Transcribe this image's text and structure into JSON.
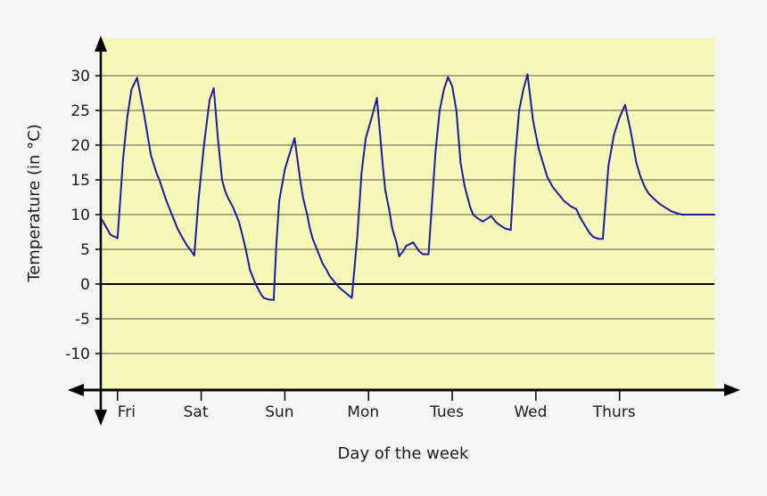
{
  "chart_data": {
    "type": "line",
    "xlabel": "Day of the week",
    "ylabel": "Temperature (in °C)",
    "categories": [
      "Fri",
      "Sat",
      "Sun",
      "Mon",
      "Tues",
      "Wed",
      "Thurs"
    ],
    "y_ticks": [
      30,
      25,
      20,
      15,
      10,
      5,
      0,
      -5,
      -10
    ],
    "grid": true,
    "colors": {
      "plot_background": "#f7f7b8",
      "line": "#1c1c9e",
      "grid": "#5a5a4a",
      "axis": "#000000"
    },
    "series": [
      {
        "x": [
          0.0,
          0.15,
          0.25,
          0.35,
          0.45,
          0.6,
          0.8,
          0.95,
          1.1,
          1.3,
          1.55,
          1.8,
          2.0,
          2.1,
          2.35,
          2.5,
          2.6,
          2.75,
          2.95,
          3.1,
          3.2,
          3.35,
          3.5,
          3.7,
          3.9,
          4.05,
          4.2,
          4.35,
          4.45,
          4.55,
          4.75,
          4.95,
          5.05,
          5.2,
          5.35,
          5.55,
          5.75,
          5.85,
          6.0,
          6.2,
          6.3,
          6.4,
          6.6,
          6.75,
          6.95,
          7.15,
          7.25,
          7.4,
          7.5,
          7.6,
          7.8,
          7.95,
          8.1,
          8.2,
          8.4,
          8.55,
          8.7,
          8.85,
          9.0,
          9.2,
          9.35,
          9.5,
          9.75,
          9.9,
          10.1,
          10.2,
          10.35,
          10.45,
          10.6,
          10.7,
          10.85,
          10.95,
          11.1,
          11.2,
          11.4,
          11.55,
          11.75,
          12.0,
          12.15,
          12.3,
          12.45,
          12.6,
          12.75,
          12.9,
          13.05,
          13.25,
          13.35,
          13.5,
          13.7,
          13.85,
          14.0,
          14.15,
          14.3,
          14.5,
          14.7,
          14.85,
          15.0,
          15.15,
          15.3,
          15.5,
          15.7,
          15.85,
          16.0,
          16.2,
          16.4,
          16.6,
          16.85,
          17.05,
          17.2,
          17.35,
          17.5,
          17.65,
          17.85,
          18.0,
          18.2,
          18.4,
          18.6,
          18.8,
          19.0,
          19.2,
          19.35,
          19.5,
          19.65,
          19.85,
          20.05,
          20.25,
          20.45,
          20.65,
          20.85,
          20.95,
          21.1,
          21.3,
          21.5,
          21.7,
          21.9,
          22.0
        ],
        "y": [
          9.5,
          8.5,
          7.8,
          7.1,
          6.9,
          6.6,
          18.0,
          24.0,
          28.0,
          29.7,
          24.5,
          18.5,
          16.0,
          15.0,
          12.0,
          10.5,
          9.5,
          8.0,
          6.5,
          5.5,
          5.0,
          4.1,
          12.0,
          20.0,
          26.5,
          28.2,
          21.0,
          15.0,
          13.5,
          12.5,
          11.0,
          9.0,
          7.5,
          5.0,
          2.0,
          0.0,
          -1.5,
          -2.0,
          -2.2,
          -2.3,
          6.0,
          12.0,
          16.5,
          18.5,
          21.0,
          15.0,
          12.5,
          10.0,
          8.0,
          6.5,
          4.5,
          3.0,
          2.0,
          1.2,
          0.2,
          -0.5,
          -1.0,
          -1.5,
          -2.0,
          7.0,
          16.0,
          21.0,
          24.5,
          26.8,
          17.5,
          13.5,
          10.5,
          8.0,
          6.0,
          4.0,
          4.8,
          5.5,
          5.8,
          6.0,
          4.8,
          4.3,
          4.3,
          19.0,
          25.0,
          28.0,
          29.8,
          28.5,
          25.0,
          17.5,
          14.0,
          11.0,
          10.0,
          9.5,
          9.0,
          9.4,
          9.8,
          9.0,
          8.5,
          8.0,
          7.8,
          18.0,
          25.0,
          28.0,
          30.2,
          23.5,
          19.5,
          17.5,
          15.5,
          14.0,
          13.0,
          12.0,
          11.2,
          10.8,
          9.5,
          8.5,
          7.5,
          6.8,
          6.5,
          6.5,
          17.0,
          21.5,
          24.0,
          25.8,
          22.0,
          17.5,
          15.5,
          14.0,
          13.0,
          12.2,
          11.5,
          11.0,
          10.5,
          10.2,
          10.0,
          10.0,
          10.0,
          10.0,
          10.0,
          10.0,
          10.0,
          10.0
        ]
      }
    ]
  }
}
